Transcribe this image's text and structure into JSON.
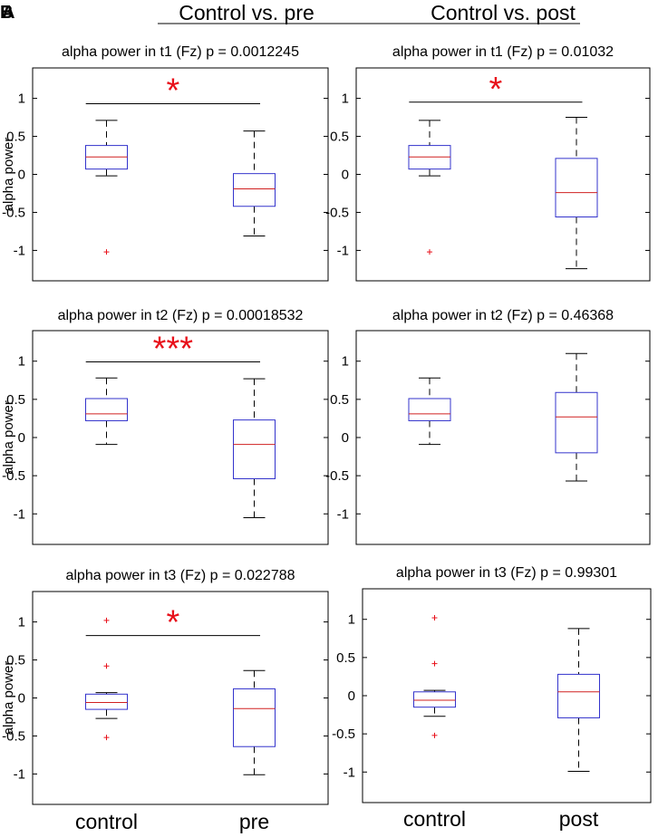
{
  "figure": {
    "panel_letters": [
      "B",
      "A"
    ],
    "column_headers": [
      "Control vs. pre",
      "Control vs. post"
    ],
    "colors": {
      "box": "#3333cc",
      "median": "#d02020",
      "whisker": "#000000",
      "outlier": "#e8101a",
      "significance": "#e8101a",
      "axes": "#000000"
    }
  },
  "chart_data": [
    {
      "type": "box",
      "title": "alpha power in t1 (Fz)   p = 0.0012245",
      "ylabel": "alpha power",
      "xlabel": "",
      "ylim": [
        -1.4,
        1.4
      ],
      "yticks": [
        -1,
        -0.5,
        0,
        0.5,
        1
      ],
      "ytick_labels": [
        "-1",
        "-0.5",
        "0",
        "0.5",
        "1"
      ],
      "categories": [
        "control",
        "pre"
      ],
      "show_xticklabels": false,
      "boxes": [
        {
          "name": "control",
          "q1": 0.07,
          "median": 0.23,
          "q3": 0.38,
          "whisker_low": -0.02,
          "whisker_high": 0.71,
          "outliers": [
            -1.02
          ]
        },
        {
          "name": "pre",
          "q1": -0.42,
          "median": -0.19,
          "q3": 0.01,
          "whisker_low": -0.81,
          "whisker_high": 0.57,
          "outliers": []
        }
      ],
      "significance": {
        "label": "*",
        "y": 0.93
      }
    },
    {
      "type": "box",
      "title": "alpha power in t1 (Fz)   p = 0.01032",
      "ylabel": "",
      "xlabel": "",
      "ylim": [
        -1.4,
        1.4
      ],
      "yticks": [
        -1,
        -0.5,
        0,
        0.5,
        1
      ],
      "ytick_labels": [
        "-1",
        "-0.5",
        "0",
        "0.5",
        "1"
      ],
      "categories": [
        "control",
        "post"
      ],
      "show_xticklabels": false,
      "boxes": [
        {
          "name": "control",
          "q1": 0.07,
          "median": 0.23,
          "q3": 0.38,
          "whisker_low": -0.02,
          "whisker_high": 0.71,
          "outliers": [
            -1.02
          ]
        },
        {
          "name": "post",
          "q1": -0.56,
          "median": -0.24,
          "q3": 0.21,
          "whisker_low": -1.24,
          "whisker_high": 0.75,
          "outliers": []
        }
      ],
      "significance": {
        "label": "*",
        "y": 0.95
      }
    },
    {
      "type": "box",
      "title": "alpha power in t2 (Fz)   p = 0.00018532",
      "ylabel": "alpha power",
      "xlabel": "",
      "ylim": [
        -1.4,
        1.4
      ],
      "yticks": [
        -1,
        -0.5,
        0,
        0.5,
        1
      ],
      "ytick_labels": [
        "-1",
        "-0.5",
        "0",
        "0.5",
        "1"
      ],
      "categories": [
        "control",
        "pre"
      ],
      "show_xticklabels": false,
      "boxes": [
        {
          "name": "control",
          "q1": 0.22,
          "median": 0.31,
          "q3": 0.51,
          "whisker_low": -0.09,
          "whisker_high": 0.78,
          "outliers": []
        },
        {
          "name": "pre",
          "q1": -0.54,
          "median": -0.09,
          "q3": 0.23,
          "whisker_low": -1.05,
          "whisker_high": 0.77,
          "outliers": []
        }
      ],
      "significance": {
        "label": "***",
        "y": 0.99
      }
    },
    {
      "type": "box",
      "title": "alpha power in t2 (Fz)   p = 0.46368",
      "ylabel": "",
      "xlabel": "",
      "ylim": [
        -1.4,
        1.4
      ],
      "yticks": [
        -1,
        -0.5,
        0,
        0.5,
        1
      ],
      "ytick_labels": [
        "-1",
        "-0.5",
        "0",
        "0.5",
        "1"
      ],
      "categories": [
        "control",
        "post"
      ],
      "show_xticklabels": false,
      "boxes": [
        {
          "name": "control",
          "q1": 0.22,
          "median": 0.31,
          "q3": 0.51,
          "whisker_low": -0.09,
          "whisker_high": 0.78,
          "outliers": []
        },
        {
          "name": "post",
          "q1": -0.2,
          "median": 0.27,
          "q3": 0.59,
          "whisker_low": -0.57,
          "whisker_high": 1.1,
          "outliers": []
        }
      ],
      "significance": null
    },
    {
      "type": "box",
      "title": "alpha power in t3 (Fz)   p = 0.022788",
      "ylabel": "alpha power",
      "xlabel": "",
      "ylim": [
        -1.4,
        1.4
      ],
      "yticks": [
        -1,
        -0.5,
        0,
        0.5,
        1
      ],
      "ytick_labels": [
        "-1",
        "-0.5",
        "0",
        "0.5",
        "1"
      ],
      "categories": [
        "control",
        "pre"
      ],
      "show_xticklabels": true,
      "boxes": [
        {
          "name": "control",
          "q1": -0.15,
          "median": -0.06,
          "q3": 0.05,
          "whisker_low": -0.27,
          "whisker_high": 0.07,
          "outliers": [
            1.02,
            0.42,
            -0.52
          ]
        },
        {
          "name": "pre",
          "q1": -0.64,
          "median": -0.14,
          "q3": 0.12,
          "whisker_low": -1.01,
          "whisker_high": 0.36,
          "outliers": []
        }
      ],
      "significance": {
        "label": "*",
        "y": 0.82
      }
    },
    {
      "type": "box",
      "title": "alpha power in t3 (Fz)   p = 0.99301",
      "ylabel": "",
      "xlabel": "",
      "ylim": [
        -1.4,
        1.4
      ],
      "yticks": [
        -1,
        -0.5,
        0,
        0.5,
        1
      ],
      "ytick_labels": [
        "-1",
        "-0.5",
        "0",
        "0.5",
        "1"
      ],
      "categories": [
        "control",
        "post"
      ],
      "show_xticklabels": true,
      "boxes": [
        {
          "name": "control",
          "q1": -0.15,
          "median": -0.06,
          "q3": 0.05,
          "whisker_low": -0.27,
          "whisker_high": 0.07,
          "outliers": [
            1.02,
            0.42,
            -0.52
          ]
        },
        {
          "name": "post",
          "q1": -0.29,
          "median": 0.05,
          "q3": 0.28,
          "whisker_low": -0.99,
          "whisker_high": 0.88,
          "outliers": []
        }
      ],
      "significance": null
    }
  ]
}
